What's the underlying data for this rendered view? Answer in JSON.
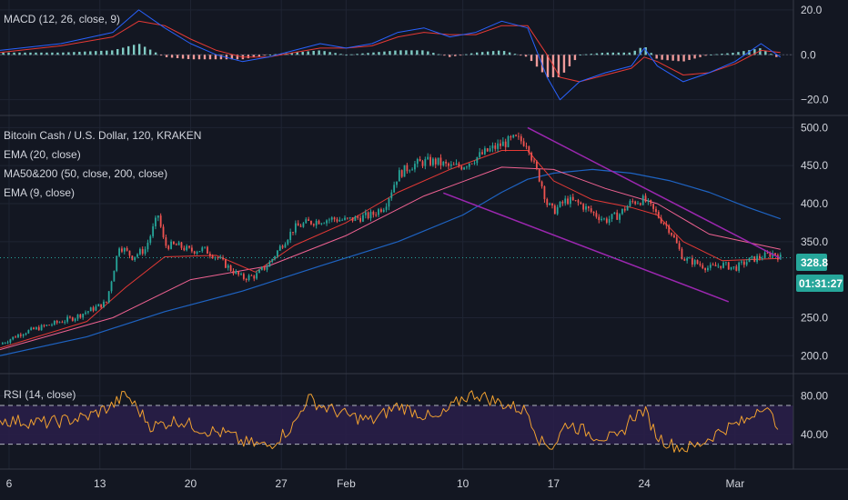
{
  "colors": {
    "background": "#131722",
    "grid": "#1f2433",
    "separator": "#363a45",
    "text": "#d1d4dc",
    "up": "#26a69a",
    "down": "#ef5350",
    "ema20": "#e53935",
    "ma50": "#f06292",
    "ma200": "#1e63c2",
    "ema9": "#ff6f00",
    "channel": "#9c27b0",
    "macd_line": "#2962ff",
    "macd_signal": "#e53935",
    "hist_up": "#80cbc4",
    "hist_down": "#ef9a9a",
    "rsi_line": "#f0a030",
    "rsi_band": "#2a1f4a",
    "price_badge": "#26a69a",
    "price_line": "#26a69a"
  },
  "macd_pane": {
    "title": "MACD (12, 26, close, 9)",
    "ticks": [
      "20.0",
      "0.0",
      "−20.0"
    ],
    "tick_values": [
      20,
      0,
      -20
    ],
    "ylim": [
      -25,
      22
    ]
  },
  "price_pane": {
    "legend": [
      "Bitcoin Cash / U.S. Dollar, 120, KRAKEN",
      "EMA (20, close)",
      "MA50&200 (50, close, 200, close)",
      "EMA (9, close)"
    ],
    "ticks": [
      "500.0",
      "450.0",
      "400.0",
      "350.0",
      "250.0",
      "200.0"
    ],
    "tick_values": [
      500,
      450,
      400,
      350,
      250,
      200
    ],
    "ylim": [
      180,
      510
    ],
    "current_price": "328.8",
    "current_price_value": 328.8,
    "countdown": "01:31:27"
  },
  "rsi_pane": {
    "title": "RSI (14, close)",
    "ticks": [
      "80.00",
      "40.00"
    ],
    "tick_values": [
      80,
      40
    ],
    "upper_band": 70,
    "lower_band": 30,
    "ylim": [
      10,
      100
    ]
  },
  "x_axis": {
    "labels": [
      "6",
      "13",
      "20",
      "27",
      "Feb",
      "10",
      "17",
      "24",
      "Mar"
    ],
    "positions": [
      0,
      7,
      14,
      21,
      26,
      35,
      42,
      49,
      56
    ]
  },
  "chart_data": {
    "type": "candlestick",
    "x_unit": "days since Jan 6",
    "xlim": [
      -0.7,
      60.5
    ],
    "price_path": [
      [
        -0.7,
        215
      ],
      [
        1,
        230
      ],
      [
        3,
        240
      ],
      [
        5,
        250
      ],
      [
        6.5,
        262
      ],
      [
        7.5,
        270
      ],
      [
        8.5,
        345
      ],
      [
        9.5,
        330
      ],
      [
        10.5,
        340
      ],
      [
        11.5,
        385
      ],
      [
        12,
        345
      ],
      [
        13,
        345
      ],
      [
        14,
        338
      ],
      [
        15,
        340
      ],
      [
        16,
        330
      ],
      [
        17,
        315
      ],
      [
        18,
        302
      ],
      [
        19,
        305
      ],
      [
        20,
        320
      ],
      [
        21,
        345
      ],
      [
        22,
        368
      ],
      [
        23,
        375
      ],
      [
        24,
        378
      ],
      [
        25,
        380
      ],
      [
        26,
        378
      ],
      [
        28,
        385
      ],
      [
        29,
        398
      ],
      [
        30,
        438
      ],
      [
        31,
        450
      ],
      [
        32,
        455
      ],
      [
        33,
        455
      ],
      [
        34,
        448
      ],
      [
        35,
        450
      ],
      [
        36,
        460
      ],
      [
        37,
        470
      ],
      [
        38,
        478
      ],
      [
        39,
        485
      ],
      [
        40,
        480
      ],
      [
        40.5,
        450
      ],
      [
        41,
        430
      ],
      [
        41.5,
        400
      ],
      [
        42,
        390
      ],
      [
        43,
        405
      ],
      [
        44,
        400
      ],
      [
        45,
        388
      ],
      [
        46,
        378
      ],
      [
        47,
        385
      ],
      [
        48,
        402
      ],
      [
        49,
        405
      ],
      [
        50,
        385
      ],
      [
        51,
        365
      ],
      [
        52,
        328
      ],
      [
        53,
        322
      ],
      [
        54,
        315
      ],
      [
        55,
        320
      ],
      [
        56,
        315
      ],
      [
        57,
        325
      ],
      [
        58,
        330
      ],
      [
        59,
        335
      ],
      [
        59.5,
        328.8
      ]
    ],
    "overlays": {
      "ema20": [
        [
          -0.7,
          210
        ],
        [
          6,
          245
        ],
        [
          9,
          290
        ],
        [
          12,
          330
        ],
        [
          16,
          332
        ],
        [
          19,
          310
        ],
        [
          22,
          345
        ],
        [
          26,
          375
        ],
        [
          30,
          415
        ],
        [
          34,
          445
        ],
        [
          38,
          470
        ],
        [
          40,
          470
        ],
        [
          42,
          430
        ],
        [
          45,
          405
        ],
        [
          48,
          395
        ],
        [
          50,
          385
        ],
        [
          52,
          350
        ],
        [
          55,
          325
        ],
        [
          59.5,
          328
        ]
      ],
      "ma200": [
        [
          -0.7,
          200
        ],
        [
          6,
          225
        ],
        [
          12,
          258
        ],
        [
          18,
          285
        ],
        [
          24,
          318
        ],
        [
          30,
          350
        ],
        [
          35,
          385
        ],
        [
          38,
          415
        ],
        [
          40,
          432
        ],
        [
          42,
          440
        ],
        [
          45,
          445
        ],
        [
          48,
          440
        ],
        [
          51,
          430
        ],
        [
          54,
          415
        ],
        [
          57,
          395
        ],
        [
          59.5,
          380
        ]
      ],
      "ma50": [
        [
          -0.7,
          208
        ],
        [
          8,
          250
        ],
        [
          14,
          300
        ],
        [
          20,
          318
        ],
        [
          26,
          358
        ],
        [
          32,
          410
        ],
        [
          38,
          448
        ],
        [
          42,
          445
        ],
        [
          46,
          420
        ],
        [
          50,
          400
        ],
        [
          54,
          360
        ],
        [
          59.5,
          340
        ]
      ]
    },
    "channel": {
      "upper": [
        [
          40,
          500
        ],
        [
          59.5,
          328
        ]
      ],
      "lower": [
        [
          33.5,
          414
        ],
        [
          55.5,
          271
        ]
      ]
    },
    "macd": {
      "line": [
        [
          -0.7,
          2
        ],
        [
          4,
          5
        ],
        [
          8,
          10
        ],
        [
          10,
          20
        ],
        [
          12,
          12
        ],
        [
          14,
          5
        ],
        [
          16,
          0
        ],
        [
          18,
          -3
        ],
        [
          20,
          -1
        ],
        [
          22,
          2
        ],
        [
          24,
          5
        ],
        [
          26,
          3
        ],
        [
          28,
          5
        ],
        [
          30,
          10
        ],
        [
          32,
          12
        ],
        [
          34,
          8
        ],
        [
          36,
          10
        ],
        [
          38,
          15
        ],
        [
          40,
          12
        ],
        [
          41.5,
          -10
        ],
        [
          42.5,
          -20
        ],
        [
          44,
          -12
        ],
        [
          46,
          -8
        ],
        [
          48,
          -5
        ],
        [
          49,
          3
        ],
        [
          50,
          -5
        ],
        [
          52,
          -12
        ],
        [
          54,
          -8
        ],
        [
          56,
          -3
        ],
        [
          58,
          5
        ],
        [
          59.5,
          -1
        ]
      ],
      "signal": [
        [
          -0.7,
          1
        ],
        [
          4,
          4
        ],
        [
          8,
          8
        ],
        [
          10,
          15
        ],
        [
          12,
          13
        ],
        [
          14,
          7
        ],
        [
          16,
          2
        ],
        [
          18,
          -1
        ],
        [
          20,
          -1
        ],
        [
          22,
          1
        ],
        [
          24,
          3
        ],
        [
          26,
          3
        ],
        [
          28,
          4
        ],
        [
          30,
          8
        ],
        [
          32,
          10
        ],
        [
          34,
          9
        ],
        [
          36,
          9
        ],
        [
          38,
          13
        ],
        [
          40,
          13
        ],
        [
          41.5,
          0
        ],
        [
          42.5,
          -10
        ],
        [
          44,
          -12
        ],
        [
          46,
          -9
        ],
        [
          48,
          -6
        ],
        [
          49,
          -1
        ],
        [
          50,
          -3
        ],
        [
          52,
          -9
        ],
        [
          54,
          -8
        ],
        [
          56,
          -4
        ],
        [
          58,
          2
        ],
        [
          59.5,
          1
        ]
      ]
    },
    "rsi_path": [
      [
        -0.7,
        55
      ],
      [
        3,
        52
      ],
      [
        6,
        58
      ],
      [
        8,
        70
      ],
      [
        9,
        82
      ],
      [
        11,
        48
      ],
      [
        13,
        55
      ],
      [
        15,
        45
      ],
      [
        17,
        40
      ],
      [
        18,
        32
      ],
      [
        20,
        28
      ],
      [
        22,
        50
      ],
      [
        23,
        78
      ],
      [
        24,
        70
      ],
      [
        26,
        60
      ],
      [
        28,
        54
      ],
      [
        30,
        70
      ],
      [
        31,
        65
      ],
      [
        33,
        55
      ],
      [
        35,
        78
      ],
      [
        36,
        82
      ],
      [
        38,
        72
      ],
      [
        40,
        64
      ],
      [
        41,
        32
      ],
      [
        42,
        28
      ],
      [
        43,
        52
      ],
      [
        45,
        40
      ],
      [
        47,
        35
      ],
      [
        48,
        58
      ],
      [
        49,
        65
      ],
      [
        50,
        38
      ],
      [
        51,
        30
      ],
      [
        52,
        26
      ],
      [
        53,
        28
      ],
      [
        55,
        45
      ],
      [
        57,
        55
      ],
      [
        58,
        72
      ],
      [
        59,
        55
      ],
      [
        59.5,
        50
      ]
    ]
  }
}
